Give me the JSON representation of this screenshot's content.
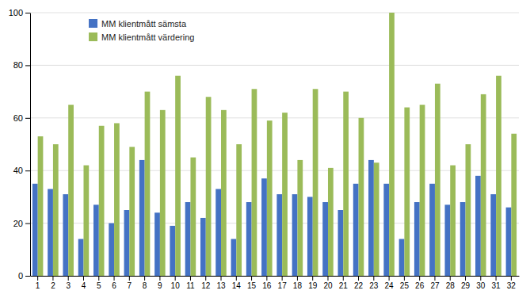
{
  "chart_data": {
    "type": "bar",
    "categories": [
      "1",
      "2",
      "3",
      "4",
      "5",
      "6",
      "7",
      "8",
      "9",
      "10",
      "11",
      "12",
      "13",
      "14",
      "15",
      "16",
      "17",
      "18",
      "19",
      "20",
      "21",
      "22",
      "23",
      "24",
      "25",
      "26",
      "27",
      "28",
      "29",
      "30",
      "31",
      "32"
    ],
    "series": [
      {
        "name": "MM klientmått sämsta",
        "color": "#4472C4",
        "values": [
          35,
          33,
          31,
          14,
          27,
          20,
          25,
          44,
          24,
          19,
          28,
          22,
          33,
          14,
          28,
          37,
          31,
          31,
          30,
          28,
          25,
          35,
          44,
          35,
          14,
          28,
          35,
          27,
          28,
          38,
          31,
          26
        ]
      },
      {
        "name": "MM klientmått värdering",
        "color": "#9BBB59",
        "values": [
          53,
          50,
          65,
          42,
          57,
          58,
          49,
          70,
          63,
          76,
          45,
          68,
          63,
          50,
          71,
          59,
          62,
          44,
          71,
          41,
          70,
          60,
          43,
          100,
          64,
          65,
          73,
          42,
          50,
          69,
          76,
          54
        ]
      }
    ],
    "ylim": [
      0,
      100
    ],
    "yticks": [
      0,
      20,
      40,
      60,
      80,
      100
    ],
    "grid": true,
    "legend": "upper left"
  }
}
